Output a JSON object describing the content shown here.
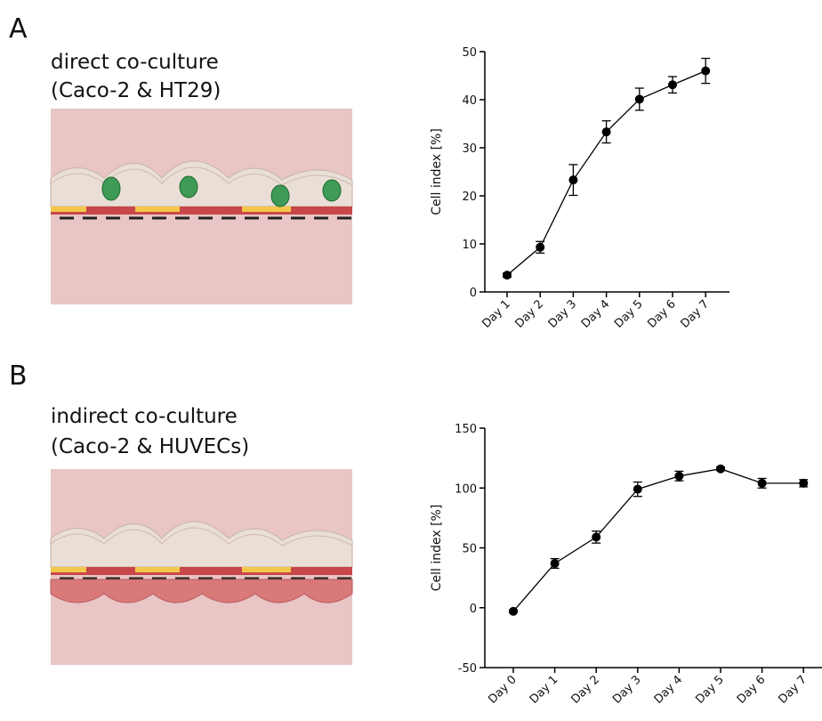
{
  "panels": [
    {
      "label": "A",
      "title": "direct co-culture",
      "subtitle": "(Caco-2 & HT29)"
    },
    {
      "label": "B",
      "title": "indirect co-culture",
      "subtitle": "(Caco-2 & HUVECs)"
    }
  ],
  "chart_data": [
    {
      "type": "line",
      "y_label": "Cell index [%]",
      "categories": [
        "Day 1",
        "Day 2",
        "Day 3",
        "Day 4",
        "Day 5",
        "Day 6",
        "Day 7"
      ],
      "values": [
        3.5,
        9.3,
        23.3,
        33.3,
        40.1,
        43.1,
        46.0
      ],
      "errors": [
        0.4,
        1.2,
        3.2,
        2.3,
        2.3,
        1.7,
        2.6
      ],
      "color": "#000000",
      "ylim": [
        0,
        50
      ],
      "yticks": [
        0,
        10,
        20,
        30,
        40,
        50
      ]
    },
    {
      "type": "line",
      "y_label": "Cell index [%]",
      "categories": [
        "Day 0",
        "Day 1",
        "Day 2",
        "Day 3",
        "Day 4",
        "Day 5",
        "Day 6",
        "Day 7"
      ],
      "values": [
        -3,
        37,
        59,
        99,
        110,
        116,
        104,
        104
      ],
      "errors": [
        1,
        4,
        5,
        6,
        4,
        1.5,
        4,
        3
      ],
      "color": "#000000",
      "ylim": [
        -50,
        150
      ],
      "yticks": [
        -50,
        0,
        50,
        100,
        150
      ]
    }
  ]
}
